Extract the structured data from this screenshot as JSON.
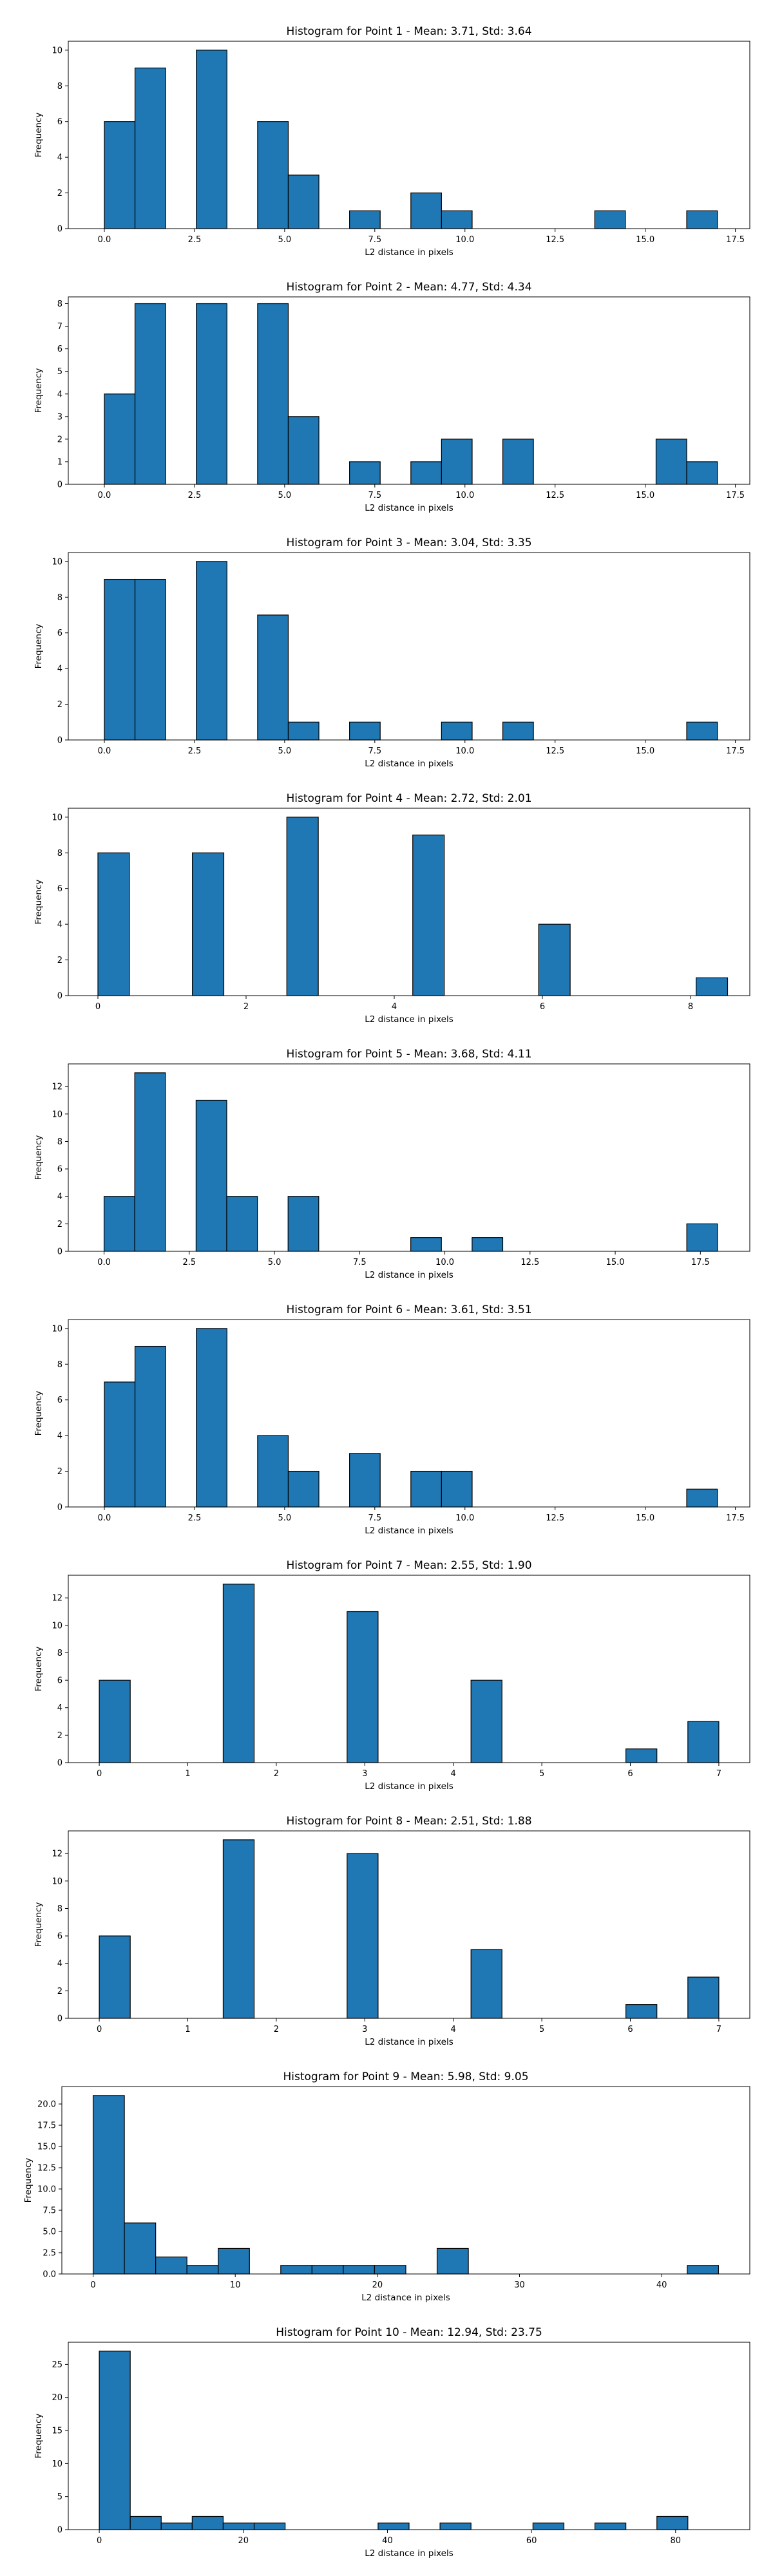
{
  "style": {
    "bar_color": "#1f77b4",
    "edge_color": "#000000"
  },
  "chart_data": [
    {
      "type": "bar",
      "title": "Histogram for Point 1 - Mean: 3.71, Std: 3.64",
      "xlabel": "L2 distance in pixels",
      "ylabel": "Frequency",
      "xlim": [
        -1.0,
        17.9
      ],
      "ylim": [
        0,
        10.5
      ],
      "xticks": [
        0.0,
        2.5,
        5.0,
        7.5,
        10.0,
        12.5,
        15.0,
        17.5
      ],
      "xtick_labels": [
        "0.0",
        "2.5",
        "5.0",
        "7.5",
        "10.0",
        "12.5",
        "15.0",
        "17.5"
      ],
      "yticks": [
        0,
        2,
        4,
        6,
        8,
        10
      ],
      "ytick_labels": [
        "0",
        "2",
        "4",
        "6",
        "8",
        "10"
      ],
      "bins": [
        0.0,
        0.85,
        1.7,
        2.55,
        3.4,
        4.25,
        5.1,
        5.95,
        6.8,
        7.65,
        8.5,
        9.35,
        10.2,
        11.05,
        11.9,
        12.75,
        13.6,
        14.45,
        15.3,
        16.15,
        17.0
      ],
      "counts": [
        6,
        9,
        0,
        10,
        0,
        6,
        3,
        0,
        1,
        0,
        2,
        1,
        0,
        0,
        0,
        0,
        1,
        0,
        0,
        1
      ]
    },
    {
      "type": "bar",
      "title": "Histogram for Point 2 - Mean: 4.77, Std: 4.34",
      "xlabel": "L2 distance in pixels",
      "ylabel": "Frequency",
      "xlim": [
        -1.0,
        17.9
      ],
      "ylim": [
        0,
        8.3
      ],
      "xticks": [
        0.0,
        2.5,
        5.0,
        7.5,
        10.0,
        12.5,
        15.0,
        17.5
      ],
      "xtick_labels": [
        "0.0",
        "2.5",
        "5.0",
        "7.5",
        "10.0",
        "12.5",
        "15.0",
        "17.5"
      ],
      "yticks": [
        0,
        1,
        2,
        3,
        4,
        5,
        6,
        7,
        8
      ],
      "ytick_labels": [
        "0",
        "1",
        "2",
        "3",
        "4",
        "5",
        "6",
        "7",
        "8"
      ],
      "bins": [
        0.0,
        0.85,
        1.7,
        2.55,
        3.4,
        4.25,
        5.1,
        5.95,
        6.8,
        7.65,
        8.5,
        9.35,
        10.2,
        11.05,
        11.9,
        12.75,
        13.6,
        14.45,
        15.3,
        16.15,
        17.0
      ],
      "counts": [
        4,
        8,
        0,
        8,
        0,
        8,
        3,
        0,
        1,
        0,
        1,
        2,
        0,
        2,
        0,
        0,
        0,
        0,
        2,
        1
      ]
    },
    {
      "type": "bar",
      "title": "Histogram for Point 3 - Mean: 3.04, Std: 3.35",
      "xlabel": "L2 distance in pixels",
      "ylabel": "Frequency",
      "xlim": [
        -1.0,
        17.9
      ],
      "ylim": [
        0,
        10.5
      ],
      "xticks": [
        0.0,
        2.5,
        5.0,
        7.5,
        10.0,
        12.5,
        15.0,
        17.5
      ],
      "xtick_labels": [
        "0.0",
        "2.5",
        "5.0",
        "7.5",
        "10.0",
        "12.5",
        "15.0",
        "17.5"
      ],
      "yticks": [
        0,
        2,
        4,
        6,
        8,
        10
      ],
      "ytick_labels": [
        "0",
        "2",
        "4",
        "6",
        "8",
        "10"
      ],
      "bins": [
        0.0,
        0.85,
        1.7,
        2.55,
        3.4,
        4.25,
        5.1,
        5.95,
        6.8,
        7.65,
        8.5,
        9.35,
        10.2,
        11.05,
        11.9,
        12.75,
        13.6,
        14.45,
        15.3,
        16.15,
        17.0
      ],
      "counts": [
        9,
        9,
        0,
        10,
        0,
        7,
        1,
        0,
        1,
        0,
        0,
        1,
        0,
        1,
        0,
        0,
        0,
        0,
        0,
        1
      ]
    },
    {
      "type": "bar",
      "title": "Histogram for Point 4 - Mean: 2.72, Std: 2.01",
      "xlabel": "L2 distance in pixels",
      "ylabel": "Frequency",
      "xlim": [
        -0.4,
        8.8
      ],
      "ylim": [
        0,
        10.5
      ],
      "xticks": [
        0,
        2,
        4,
        6,
        8
      ],
      "xtick_labels": [
        "0",
        "2",
        "4",
        "6",
        "8"
      ],
      "yticks": [
        0,
        2,
        4,
        6,
        8,
        10
      ],
      "ytick_labels": [
        "0",
        "2",
        "4",
        "6",
        "8",
        "10"
      ],
      "bins": [
        0.0,
        0.425,
        0.85,
        1.275,
        1.7,
        2.125,
        2.55,
        2.975,
        3.4,
        3.825,
        4.25,
        4.675,
        5.1,
        5.525,
        5.95,
        6.375,
        6.8,
        7.225,
        7.65,
        8.075,
        8.5
      ],
      "counts": [
        8,
        0,
        0,
        8,
        0,
        0,
        10,
        0,
        0,
        0,
        9,
        0,
        0,
        0,
        4,
        0,
        0,
        0,
        0,
        1
      ]
    },
    {
      "type": "bar",
      "title": "Histogram for Point 5 - Mean: 3.68, Std: 4.11",
      "xlabel": "L2 distance in pixels",
      "ylabel": "Frequency",
      "xlim": [
        -1.05,
        18.95
      ],
      "ylim": [
        0,
        13.65
      ],
      "xticks": [
        0.0,
        2.5,
        5.0,
        7.5,
        10.0,
        12.5,
        15.0,
        17.5
      ],
      "xtick_labels": [
        "0.0",
        "2.5",
        "5.0",
        "7.5",
        "10.0",
        "12.5",
        "15.0",
        "17.5"
      ],
      "yticks": [
        0,
        2,
        4,
        6,
        8,
        10,
        12
      ],
      "ytick_labels": [
        "0",
        "2",
        "4",
        "6",
        "8",
        "10",
        "12"
      ],
      "bins": [
        0.0,
        0.9,
        1.8,
        2.7,
        3.6,
        4.5,
        5.4,
        6.3,
        7.2,
        8.1,
        9.0,
        9.9,
        10.8,
        11.7,
        12.6,
        13.5,
        14.4,
        15.3,
        16.2,
        17.1,
        18.0
      ],
      "counts": [
        4,
        13,
        0,
        11,
        4,
        0,
        4,
        0,
        0,
        0,
        1,
        0,
        1,
        0,
        0,
        0,
        0,
        0,
        0,
        2
      ]
    },
    {
      "type": "bar",
      "title": "Histogram for Point 6 - Mean: 3.61, Std: 3.51",
      "xlabel": "L2 distance in pixels",
      "ylabel": "Frequency",
      "xlim": [
        -1.0,
        17.9
      ],
      "ylim": [
        0,
        10.5
      ],
      "xticks": [
        0.0,
        2.5,
        5.0,
        7.5,
        10.0,
        12.5,
        15.0,
        17.5
      ],
      "xtick_labels": [
        "0.0",
        "2.5",
        "5.0",
        "7.5",
        "10.0",
        "12.5",
        "15.0",
        "17.5"
      ],
      "yticks": [
        0,
        2,
        4,
        6,
        8,
        10
      ],
      "ytick_labels": [
        "0",
        "2",
        "4",
        "6",
        "8",
        "10"
      ],
      "bins": [
        0.0,
        0.85,
        1.7,
        2.55,
        3.4,
        4.25,
        5.1,
        5.95,
        6.8,
        7.65,
        8.5,
        9.35,
        10.2,
        11.05,
        11.9,
        12.75,
        13.6,
        14.45,
        15.3,
        16.15,
        17.0
      ],
      "counts": [
        7,
        9,
        0,
        10,
        0,
        4,
        2,
        0,
        3,
        0,
        2,
        2,
        0,
        0,
        0,
        0,
        0,
        0,
        0,
        1
      ]
    },
    {
      "type": "bar",
      "title": "Histogram for Point 7 - Mean: 2.55, Std: 1.90",
      "xlabel": "L2 distance in pixels",
      "ylabel": "Frequency",
      "xlim": [
        -0.35,
        7.35
      ],
      "ylim": [
        0,
        13.65
      ],
      "xticks": [
        0,
        1,
        2,
        3,
        4,
        5,
        6,
        7
      ],
      "xtick_labels": [
        "0",
        "1",
        "2",
        "3",
        "4",
        "5",
        "6",
        "7"
      ],
      "yticks": [
        0,
        2,
        4,
        6,
        8,
        10,
        12
      ],
      "ytick_labels": [
        "0",
        "2",
        "4",
        "6",
        "8",
        "10",
        "12"
      ],
      "bins": [
        0.0,
        0.35,
        0.7,
        1.05,
        1.4,
        1.75,
        2.1,
        2.45,
        2.8,
        3.15,
        3.5,
        3.85,
        4.2,
        4.55,
        4.9,
        5.25,
        5.6,
        5.95,
        6.3,
        6.65,
        7.0
      ],
      "counts": [
        6,
        0,
        0,
        0,
        13,
        0,
        0,
        0,
        11,
        0,
        0,
        0,
        6,
        0,
        0,
        0,
        0,
        1,
        0,
        3
      ]
    },
    {
      "type": "bar",
      "title": "Histogram for Point 8 - Mean: 2.51, Std: 1.88",
      "xlabel": "L2 distance in pixels",
      "ylabel": "Frequency",
      "xlim": [
        -0.35,
        7.35
      ],
      "ylim": [
        0,
        13.65
      ],
      "xticks": [
        0,
        1,
        2,
        3,
        4,
        5,
        6,
        7
      ],
      "xtick_labels": [
        "0",
        "1",
        "2",
        "3",
        "4",
        "5",
        "6",
        "7"
      ],
      "yticks": [
        0,
        2,
        4,
        6,
        8,
        10,
        12
      ],
      "ytick_labels": [
        "0",
        "2",
        "4",
        "6",
        "8",
        "10",
        "12"
      ],
      "bins": [
        0.0,
        0.35,
        0.7,
        1.05,
        1.4,
        1.75,
        2.1,
        2.45,
        2.8,
        3.15,
        3.5,
        3.85,
        4.2,
        4.55,
        4.9,
        5.25,
        5.6,
        5.95,
        6.3,
        6.65,
        7.0
      ],
      "counts": [
        6,
        0,
        0,
        0,
        13,
        0,
        0,
        0,
        12,
        0,
        0,
        0,
        5,
        0,
        0,
        0,
        0,
        1,
        0,
        3
      ]
    },
    {
      "type": "bar",
      "title": "Histogram for Point 9 - Mean: 5.98, Std: 9.05",
      "xlabel": "L2 distance in pixels",
      "ylabel": "Frequency",
      "xlim": [
        -2.2,
        46.2
      ],
      "ylim": [
        0,
        22.05
      ],
      "xticks": [
        0,
        10,
        20,
        30,
        40
      ],
      "xtick_labels": [
        "0",
        "10",
        "20",
        "30",
        "40"
      ],
      "yticks": [
        0,
        2.5,
        5.0,
        7.5,
        10.0,
        12.5,
        15.0,
        17.5,
        20.0
      ],
      "ytick_labels": [
        "0.0",
        "2.5",
        "5.0",
        "7.5",
        "10.0",
        "12.5",
        "15.0",
        "17.5",
        "20.0"
      ],
      "bins": [
        0.0,
        2.2,
        4.4,
        6.6,
        8.8,
        11.0,
        13.2,
        15.4,
        17.6,
        19.8,
        22.0,
        24.2,
        26.4,
        28.6,
        30.8,
        33.0,
        35.2,
        37.4,
        39.6,
        41.8,
        44.0
      ],
      "counts": [
        21,
        6,
        2,
        1,
        3,
        0,
        1,
        1,
        1,
        1,
        0,
        3,
        0,
        0,
        0,
        0,
        0,
        0,
        0,
        1
      ]
    },
    {
      "type": "bar",
      "title": "Histogram for Point 10 - Mean: 12.94, Std: 23.75",
      "xlabel": "L2 distance in pixels",
      "ylabel": "Frequency",
      "xlim": [
        -4.3,
        90.3
      ],
      "ylim": [
        0,
        28.35
      ],
      "xticks": [
        0,
        20,
        40,
        60,
        80
      ],
      "xtick_labels": [
        "0",
        "20",
        "40",
        "60",
        "80"
      ],
      "yticks": [
        0,
        5,
        10,
        15,
        20,
        25
      ],
      "ytick_labels": [
        "0",
        "5",
        "10",
        "15",
        "20",
        "25"
      ],
      "bins": [
        0.0,
        4.3,
        8.6,
        12.9,
        17.2,
        21.5,
        25.8,
        30.1,
        34.4,
        38.7,
        43.0,
        47.3,
        51.6,
        55.9,
        60.2,
        64.5,
        68.8,
        73.1,
        77.4,
        81.7,
        86.0
      ],
      "counts": [
        27,
        2,
        1,
        2,
        1,
        1,
        0,
        0,
        0,
        1,
        0,
        1,
        0,
        0,
        1,
        0,
        1,
        0,
        2,
        0
      ]
    }
  ]
}
